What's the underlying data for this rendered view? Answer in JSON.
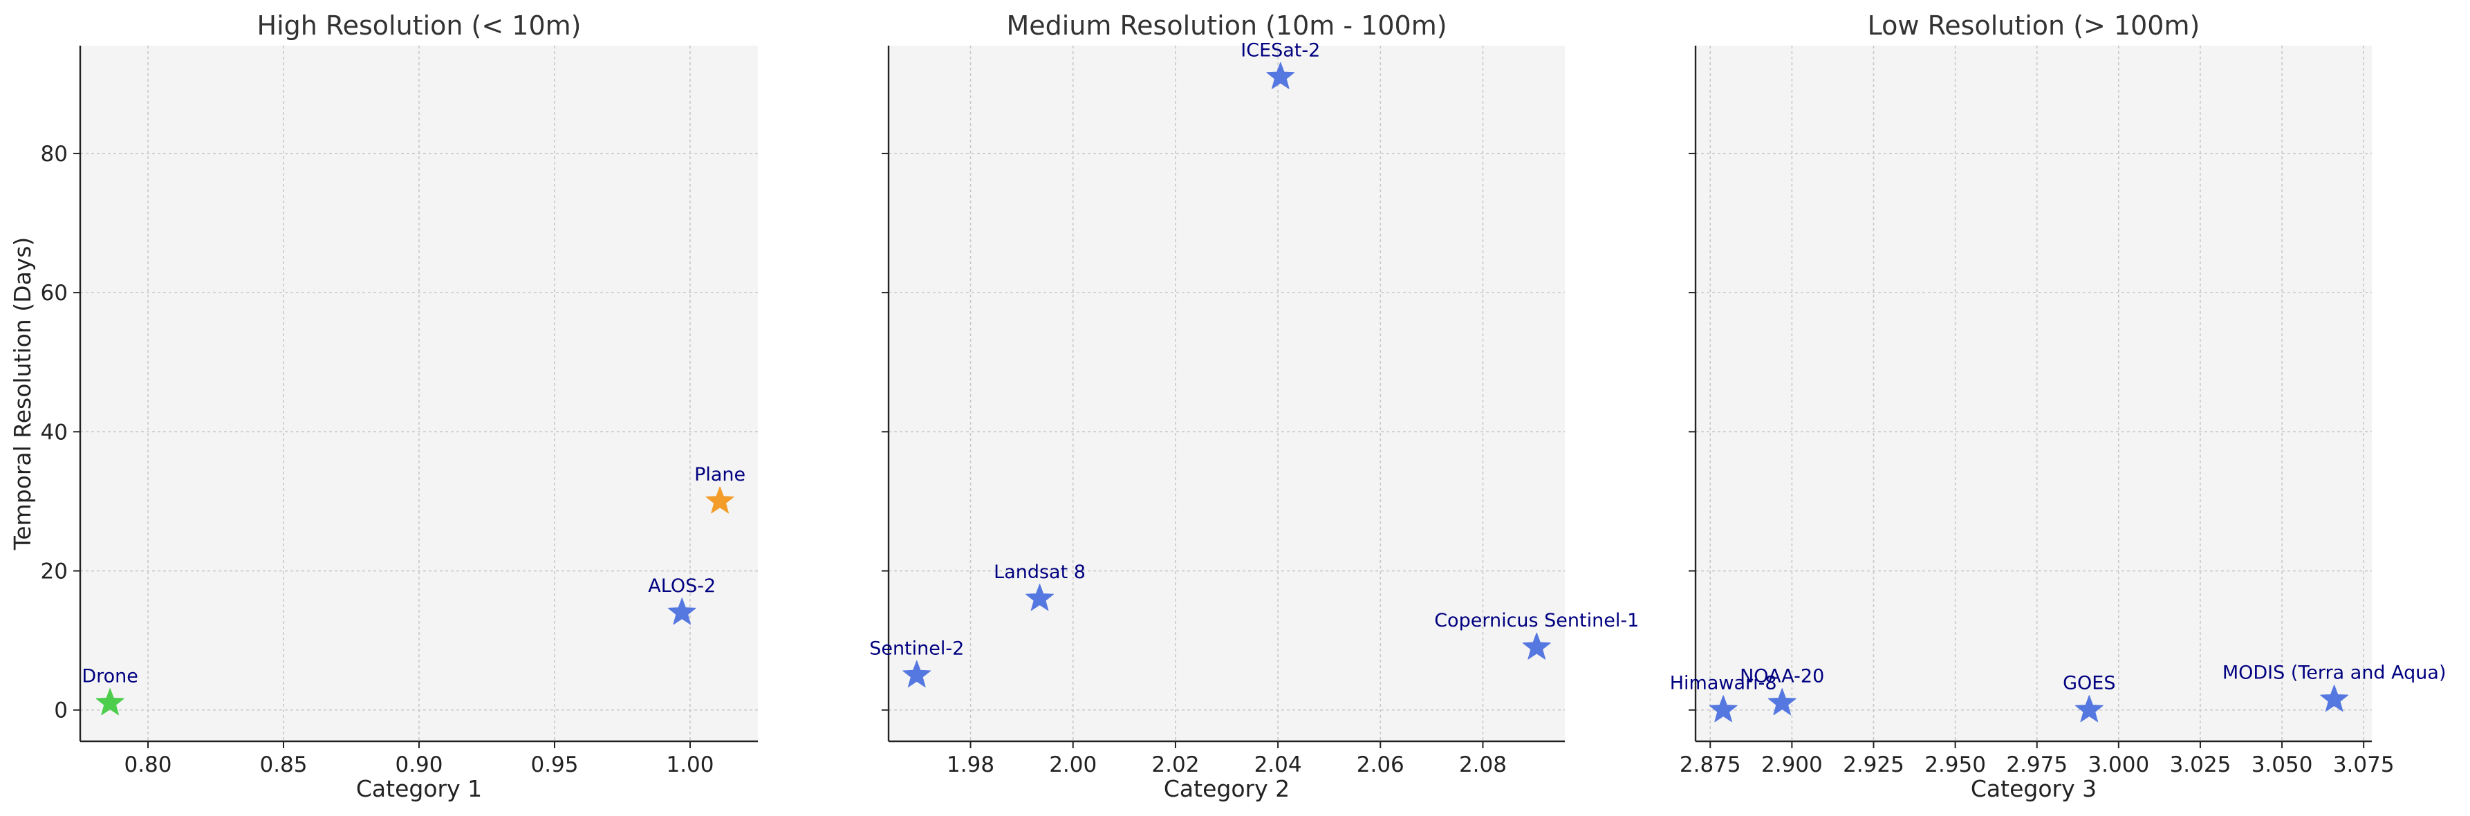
{
  "chart_data": [
    {
      "type": "scatter",
      "title": "High Resolution (< 10m)",
      "xlabel": "Category 1",
      "ylabel": "Temporal Resolution (Days)",
      "xlim": [
        0.775,
        1.025
      ],
      "ylim": [
        -4.5,
        95.5
      ],
      "xticks": [
        "0.80",
        "0.85",
        "0.90",
        "0.95",
        "1.00"
      ],
      "xtick_values": [
        0.8,
        0.85,
        0.9,
        0.95,
        1.0
      ],
      "yticks": [
        "0",
        "20",
        "40",
        "60",
        "80"
      ],
      "ytick_values": [
        0,
        20,
        40,
        60,
        80
      ],
      "grid": true,
      "marker": "star",
      "points": [
        {
          "label": "Drone",
          "x": 0.786,
          "y": 1,
          "color": "#4ccd4c"
        },
        {
          "label": "ALOS-2",
          "x": 0.997,
          "y": 14,
          "color": "#5577e0"
        },
        {
          "label": "Plane",
          "x": 1.011,
          "y": 30,
          "color": "#f39c2a"
        }
      ]
    },
    {
      "type": "scatter",
      "title": "Medium Resolution (10m - 100m)",
      "xlabel": "Category 2",
      "ylabel": "",
      "xlim": [
        1.964,
        2.096
      ],
      "ylim": [
        -4.5,
        95.5
      ],
      "xticks": [
        "1.98",
        "2.00",
        "2.02",
        "2.04",
        "2.06",
        "2.08"
      ],
      "xtick_values": [
        1.98,
        2.0,
        2.02,
        2.04,
        2.06,
        2.08
      ],
      "yticks": [],
      "ytick_values": [
        0,
        20,
        40,
        60,
        80
      ],
      "grid": true,
      "marker": "star",
      "points": [
        {
          "label": "Sentinel-2",
          "x": 1.9695,
          "y": 5,
          "color": "#5577e0"
        },
        {
          "label": "Landsat 8",
          "x": 1.9935,
          "y": 16,
          "color": "#5577e0"
        },
        {
          "label": "ICESat-2",
          "x": 2.0405,
          "y": 91,
          "color": "#5577e0"
        },
        {
          "label": "Copernicus Sentinel-1",
          "x": 2.0905,
          "y": 9,
          "color": "#5577e0"
        }
      ]
    },
    {
      "type": "scatter",
      "title": "Low Resolution (> 100m)",
      "xlabel": "Category 3",
      "ylabel": "",
      "xlim": [
        2.8705,
        3.0775
      ],
      "ylim": [
        -4.5,
        95.5
      ],
      "xticks": [
        "2.875",
        "2.900",
        "2.925",
        "2.950",
        "2.975",
        "3.000",
        "3.025",
        "3.050",
        "3.075"
      ],
      "xtick_values": [
        2.875,
        2.9,
        2.925,
        2.95,
        2.975,
        3.0,
        3.025,
        3.05,
        3.075
      ],
      "yticks": [],
      "ytick_values": [
        0,
        20,
        40,
        60,
        80
      ],
      "grid": true,
      "marker": "star",
      "points": [
        {
          "label": "Himawari-8",
          "x": 2.879,
          "y": 0,
          "color": "#5577e0"
        },
        {
          "label": "NOAA-20",
          "x": 2.897,
          "y": 1,
          "color": "#5577e0"
        },
        {
          "label": "GOES",
          "x": 2.991,
          "y": 0,
          "color": "#5577e0"
        },
        {
          "label": "MODIS (Terra and Aqua)",
          "x": 3.066,
          "y": 1.5,
          "color": "#5577e0"
        }
      ]
    }
  ]
}
